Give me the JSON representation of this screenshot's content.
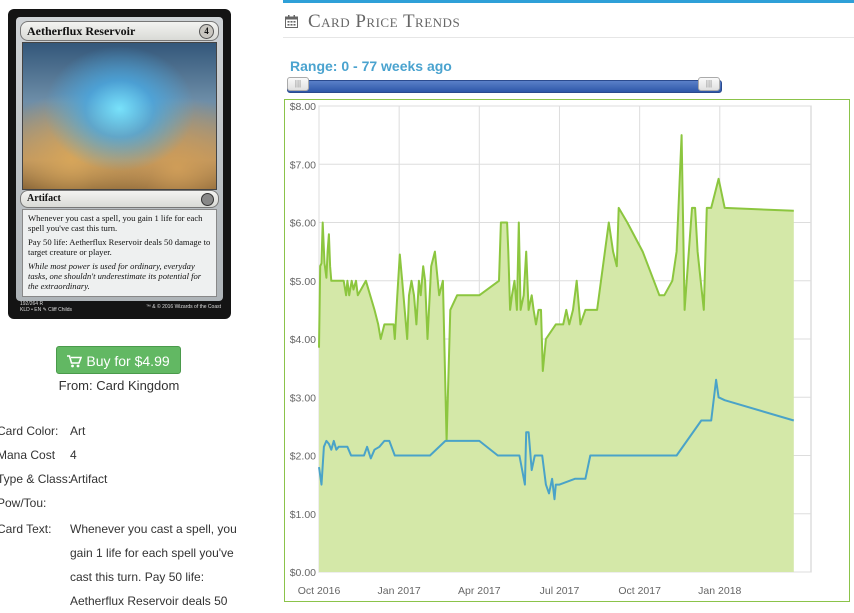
{
  "card": {
    "name": "Aetherflux Reservoir",
    "mana_symbol": "4",
    "type_line": "Artifact",
    "rules_text_1": "Whenever you cast a spell, you gain 1 life for each spell you've cast this turn.",
    "rules_text_2": "Pay 50 life: Aetherflux Reservoir deals 50 damage to target creature or player.",
    "flavor_text": "While most power is used for ordinary, everyday tasks, one shouldn't underestimate its potential for the extraordinary.",
    "collector_line_1": "192/264 R",
    "collector_line_2": "KLD • EN ✎ Cliff Childs",
    "copyright": "™ & © 2016 Wizards of the Coast"
  },
  "buy": {
    "label": "Buy for $4.99",
    "from": "From: Card Kingdom"
  },
  "details": {
    "color_label": "Card Color:",
    "color_value": "Art",
    "mana_label": "Mana Cost",
    "mana_value": "4",
    "type_label": "Type & Class:",
    "type_value": "Artifact",
    "powtou_label": "Pow/Tou:",
    "powtou_value": "",
    "text_label": "Card Text:",
    "text_value": "Whenever you cast a spell, you gain 1 life for each spell you've cast this turn. Pay 50 life: Aetherflux Reservoir deals 50"
  },
  "trends": {
    "title": "Card Price Trends",
    "range_label": "Range: 0 - 77 weeks ago",
    "range_start_fraction": 0,
    "range_end_fraction": 1,
    "colors": {
      "accent": "#2ea0d8",
      "high_line": "#8cc63f",
      "high_fill": "#d4e8a8",
      "low_line": "#4aa3c8"
    }
  },
  "chart_data": {
    "type": "area",
    "x_axis_labels": [
      "Oct 2016",
      "Jan 2017",
      "Apr 2017",
      "Jul 2017",
      "Oct 2017",
      "Jan 2018"
    ],
    "y_axis_labels": [
      "$0.00",
      "$1.00",
      "$2.00",
      "$3.00",
      "$4.00",
      "$5.00",
      "$6.00",
      "$7.00",
      "$8.00"
    ],
    "ylim": [
      0,
      8
    ],
    "xlim_weeks": [
      0,
      77
    ],
    "x_label_weeks": [
      0,
      13,
      26,
      39,
      52,
      65
    ],
    "grid": true,
    "series": [
      {
        "x_weeks": [
          0,
          0.2,
          0.4,
          0.6,
          0.9,
          1.2,
          1.4,
          1.6,
          1.8,
          2.0,
          2.2,
          3.0,
          3.5,
          4.0,
          4.4,
          4.6,
          4.9,
          5.3,
          5.6,
          6.0,
          6.3,
          7.6,
          9.0,
          9.6,
          10.0,
          10.6,
          11.2,
          12.1,
          12.3,
          12.7,
          13.1,
          13.5,
          13.9,
          14.3,
          14.6,
          15.0,
          15.4,
          15.8,
          16.2,
          16.5,
          16.9,
          17.2,
          17.6,
          18.2,
          18.8,
          19.5,
          20.1,
          20.7,
          21.3,
          22.4,
          23.2,
          26.0,
          29.2,
          29.5,
          29.9,
          30.2,
          30.5,
          30.7,
          31.0,
          31.3,
          31.7,
          32.1,
          32.4,
          32.7,
          33.2,
          33.6,
          34.0,
          34.5,
          34.8,
          35.2,
          35.6,
          36.0,
          36.3,
          36.8,
          38.4,
          39.0,
          39.6,
          40.1,
          40.6,
          41.2,
          41.8,
          42.4,
          43.2,
          43.8,
          44.3,
          45.1,
          47.0,
          47.7,
          48.3,
          48.6,
          50.0,
          52.5,
          55.2,
          56.0,
          57.3,
          58.0,
          58.8,
          59.3,
          60.5,
          61.0,
          61.4,
          61.9,
          62.4,
          62.9,
          63.6,
          64.2,
          64.8,
          65.8,
          77.0
        ],
        "y": [
          3.85,
          5.25,
          5.3,
          6.0,
          5.3,
          5.05,
          5.5,
          5.8,
          5.25,
          5.0,
          5.0,
          5.0,
          5.0,
          5.0,
          4.75,
          5.0,
          4.75,
          5.0,
          4.85,
          5.0,
          4.75,
          5.0,
          4.5,
          4.25,
          4.0,
          4.25,
          4.25,
          4.25,
          4.0,
          4.75,
          5.45,
          5.0,
          4.5,
          4.0,
          4.75,
          5.0,
          4.75,
          4.25,
          5.0,
          4.75,
          5.25,
          5.0,
          4.0,
          5.25,
          5.5,
          4.75,
          5.0,
          2.25,
          4.5,
          4.75,
          4.75,
          4.75,
          5.0,
          6.0,
          6.0,
          6.0,
          6.0,
          5.5,
          4.5,
          4.75,
          5.0,
          4.5,
          6.0,
          4.5,
          4.75,
          5.5,
          4.5,
          4.75,
          4.5,
          4.25,
          4.5,
          4.5,
          3.45,
          4.0,
          4.25,
          4.25,
          4.25,
          4.5,
          4.25,
          4.5,
          5.0,
          4.25,
          4.5,
          4.5,
          4.5,
          4.5,
          6.0,
          5.5,
          5.25,
          6.25,
          6.0,
          5.5,
          4.75,
          4.75,
          5.0,
          5.5,
          7.5,
          4.5,
          6.25,
          6.25,
          5.5,
          5.0,
          4.5,
          6.25,
          6.25,
          6.5,
          6.75,
          6.25,
          6.2
        ]
      },
      {
        "x_weeks": [
          0,
          0.4,
          0.8,
          1.2,
          1.6,
          2.0,
          2.4,
          2.8,
          3.2,
          3.6,
          4.0,
          4.6,
          5.2,
          5.6,
          6.3,
          6.8,
          7.3,
          7.8,
          8.4,
          9.0,
          9.8,
          10.6,
          11.4,
          12.3,
          13.0,
          14.0,
          16.0,
          18.0,
          20.5,
          21.0,
          23.5,
          26.0,
          29.0,
          31.0,
          32.5,
          33.4,
          33.6,
          34.0,
          34.5,
          35.0,
          35.5,
          36.2,
          36.8,
          37.3,
          37.8,
          38.2,
          38.4,
          38.7,
          39.0,
          41.5,
          43.2,
          44.0,
          45.0,
          52.0,
          58.0,
          62.0,
          63.6,
          64.4,
          64.8,
          65.8,
          77.0
        ],
        "y": [
          1.8,
          1.5,
          2.15,
          2.25,
          2.2,
          2.1,
          2.25,
          2.1,
          2.15,
          2.15,
          2.15,
          2.15,
          2.0,
          2.0,
          2.0,
          2.0,
          2.0,
          2.15,
          1.95,
          2.1,
          2.15,
          2.25,
          2.25,
          2.0,
          2.0,
          2.0,
          2.0,
          2.0,
          2.25,
          2.25,
          2.25,
          2.25,
          2.0,
          2.0,
          2.0,
          1.5,
          2.4,
          2.4,
          1.75,
          2.0,
          2.0,
          2.0,
          1.5,
          1.35,
          1.6,
          1.25,
          1.5,
          1.5,
          1.5,
          1.6,
          1.6,
          2.0,
          2.0,
          2.0,
          2.0,
          2.6,
          2.6,
          3.3,
          3.0,
          2.95,
          2.6
        ]
      }
    ]
  }
}
